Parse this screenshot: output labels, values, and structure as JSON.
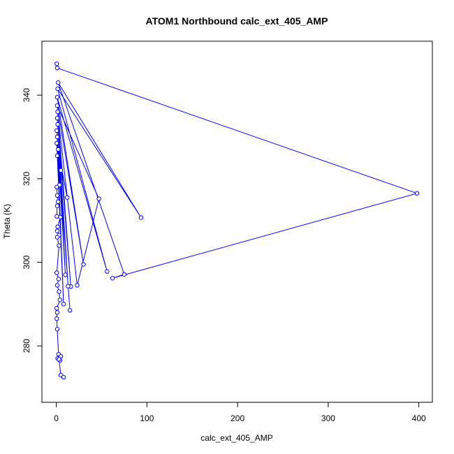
{
  "chart_data": {
    "type": "line",
    "title": "ATOM1 Northbound calc_ext_405_AMP",
    "xlabel": "calc_ext_405_AMP",
    "ylabel": "Theta (K)",
    "xlim": [
      -15.9,
      414.9
    ],
    "ylim": [
      266.5,
      352.9
    ],
    "xticks": [
      0,
      100,
      200,
      300,
      400
    ],
    "yticks": [
      280,
      300,
      320,
      340
    ],
    "grid": false,
    "legend": "none",
    "colors": {
      "series": "#0000ff",
      "axis": "#000000"
    },
    "series": [
      {
        "points": [
          [
            0.5,
            347.5
          ],
          [
            1.0,
            346.5
          ],
          [
            398.0,
            316.5
          ],
          [
            62.0,
            296.2
          ],
          [
            75.0,
            297.1
          ],
          [
            2.0,
            343.0
          ],
          [
            93.5,
            310.7
          ],
          [
            1.5,
            341.5
          ],
          [
            56.0,
            297.8
          ],
          [
            1.0,
            339.5
          ],
          [
            30.0,
            299.5
          ],
          [
            1.0,
            337.5
          ],
          [
            47.0,
            315.2
          ],
          [
            23.0,
            294.5
          ],
          [
            1.5,
            336.0
          ],
          [
            16.0,
            294.2
          ],
          [
            1.0,
            334.5
          ],
          [
            13.0,
            294.3
          ],
          [
            1.5,
            333.0
          ],
          [
            10.0,
            297.0
          ],
          [
            0.5,
            331.5
          ],
          [
            15.0,
            288.5
          ],
          [
            1.0,
            330.0
          ],
          [
            8.0,
            290.0
          ],
          [
            0.5,
            328.5
          ],
          [
            12.0,
            315.5
          ],
          [
            2.0,
            327.0
          ],
          [
            5.0,
            322.0
          ],
          [
            1.0,
            325.5
          ],
          [
            3.5,
            318.5
          ],
          [
            0.5,
            318.0
          ],
          [
            1.0,
            316.0
          ],
          [
            2.0,
            314.5
          ],
          [
            1.0,
            313.5
          ],
          [
            0.5,
            311.0
          ],
          [
            4.5,
            310.8
          ],
          [
            1.5,
            308.5
          ],
          [
            1.0,
            307.5
          ],
          [
            3.0,
            306.5
          ],
          [
            1.0,
            306.0
          ],
          [
            3.0,
            304.0
          ],
          [
            0.5,
            297.5
          ],
          [
            2.5,
            296.0
          ],
          [
            1.0,
            294.5
          ],
          [
            3.0,
            293.0
          ],
          [
            4.0,
            291.0
          ],
          [
            0.5,
            289.0
          ],
          [
            1.0,
            288.0
          ],
          [
            0.5,
            286.5
          ],
          [
            1.0,
            284.0
          ],
          [
            2.5,
            278.0
          ],
          [
            1.5,
            277.0
          ],
          [
            4.0,
            276.5
          ],
          [
            5.0,
            277.5
          ],
          [
            3.0,
            276.8
          ],
          [
            5.0,
            273.0
          ],
          [
            8.0,
            272.5
          ]
        ]
      }
    ]
  }
}
